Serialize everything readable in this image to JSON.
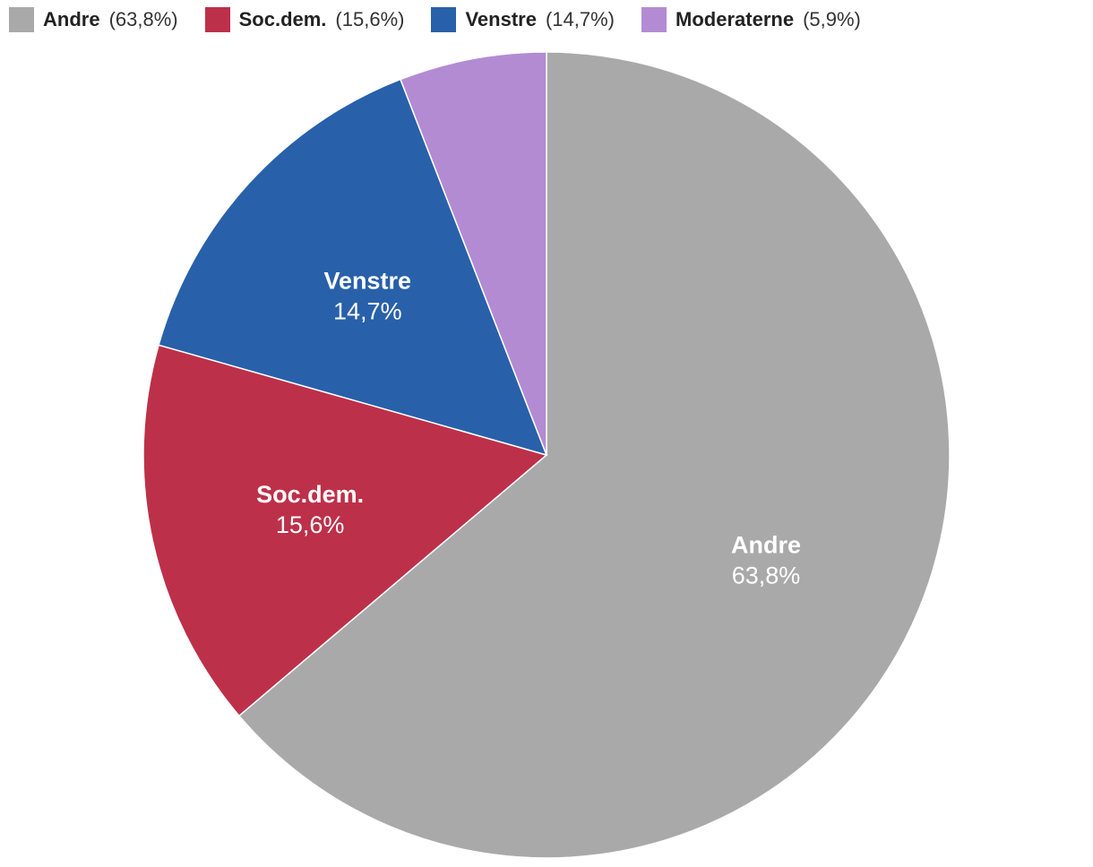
{
  "chart_data": {
    "type": "pie",
    "slices": [
      {
        "label": "Andre",
        "value": 63.8,
        "value_label": "63,8%",
        "legend_value": "(63,8%)",
        "color": "#a9a9a9",
        "show_label": true
      },
      {
        "label": "Soc.dem.",
        "value": 15.6,
        "value_label": "15,6%",
        "legend_value": "(15,6%)",
        "color": "#bd3049",
        "show_label": true
      },
      {
        "label": "Venstre",
        "value": 14.7,
        "value_label": "14,7%",
        "legend_value": "(14,7%)",
        "color": "#2860aa",
        "show_label": true
      },
      {
        "label": "Moderaterne",
        "value": 5.9,
        "value_label": "5,9%",
        "legend_value": "(5,9%)",
        "color": "#b38bd3",
        "show_label": false
      }
    ],
    "legend_position": "top-left",
    "start_angle": "12 o'clock",
    "direction": "clockwise"
  }
}
